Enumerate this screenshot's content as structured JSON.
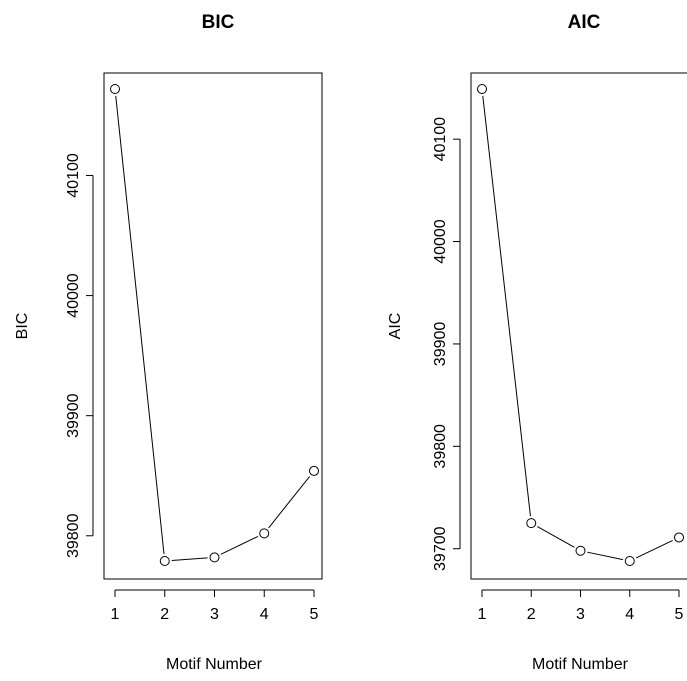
{
  "chart_data": [
    {
      "type": "line",
      "title": "BIC",
      "xlabel": "Motif Number",
      "ylabel": "BIC",
      "x": [
        1,
        2,
        3,
        4,
        5
      ],
      "xticks": [
        "1",
        "2",
        "3",
        "4",
        "5"
      ],
      "xlim": [
        1,
        5
      ],
      "y": [
        40172,
        39779,
        39782,
        39802,
        39854
      ],
      "yticks": [
        "39800",
        "39900",
        "40000",
        "40100"
      ],
      "ylim": [
        39779,
        40172
      ],
      "markers": "open-circle",
      "grid": false
    },
    {
      "type": "line",
      "title": "AIC",
      "xlabel": "Motif Number",
      "ylabel": "AIC",
      "x": [
        1,
        2,
        3,
        4,
        5
      ],
      "xticks": [
        "1",
        "2",
        "3",
        "4",
        "5"
      ],
      "xlim": [
        1,
        5
      ],
      "y": [
        40149,
        39725,
        39698,
        39688,
        39711
      ],
      "yticks": [
        "39700",
        "39800",
        "39900",
        "40000",
        "40100"
      ],
      "ylim": [
        39688,
        40149
      ],
      "markers": "open-circle",
      "grid": false
    }
  ]
}
